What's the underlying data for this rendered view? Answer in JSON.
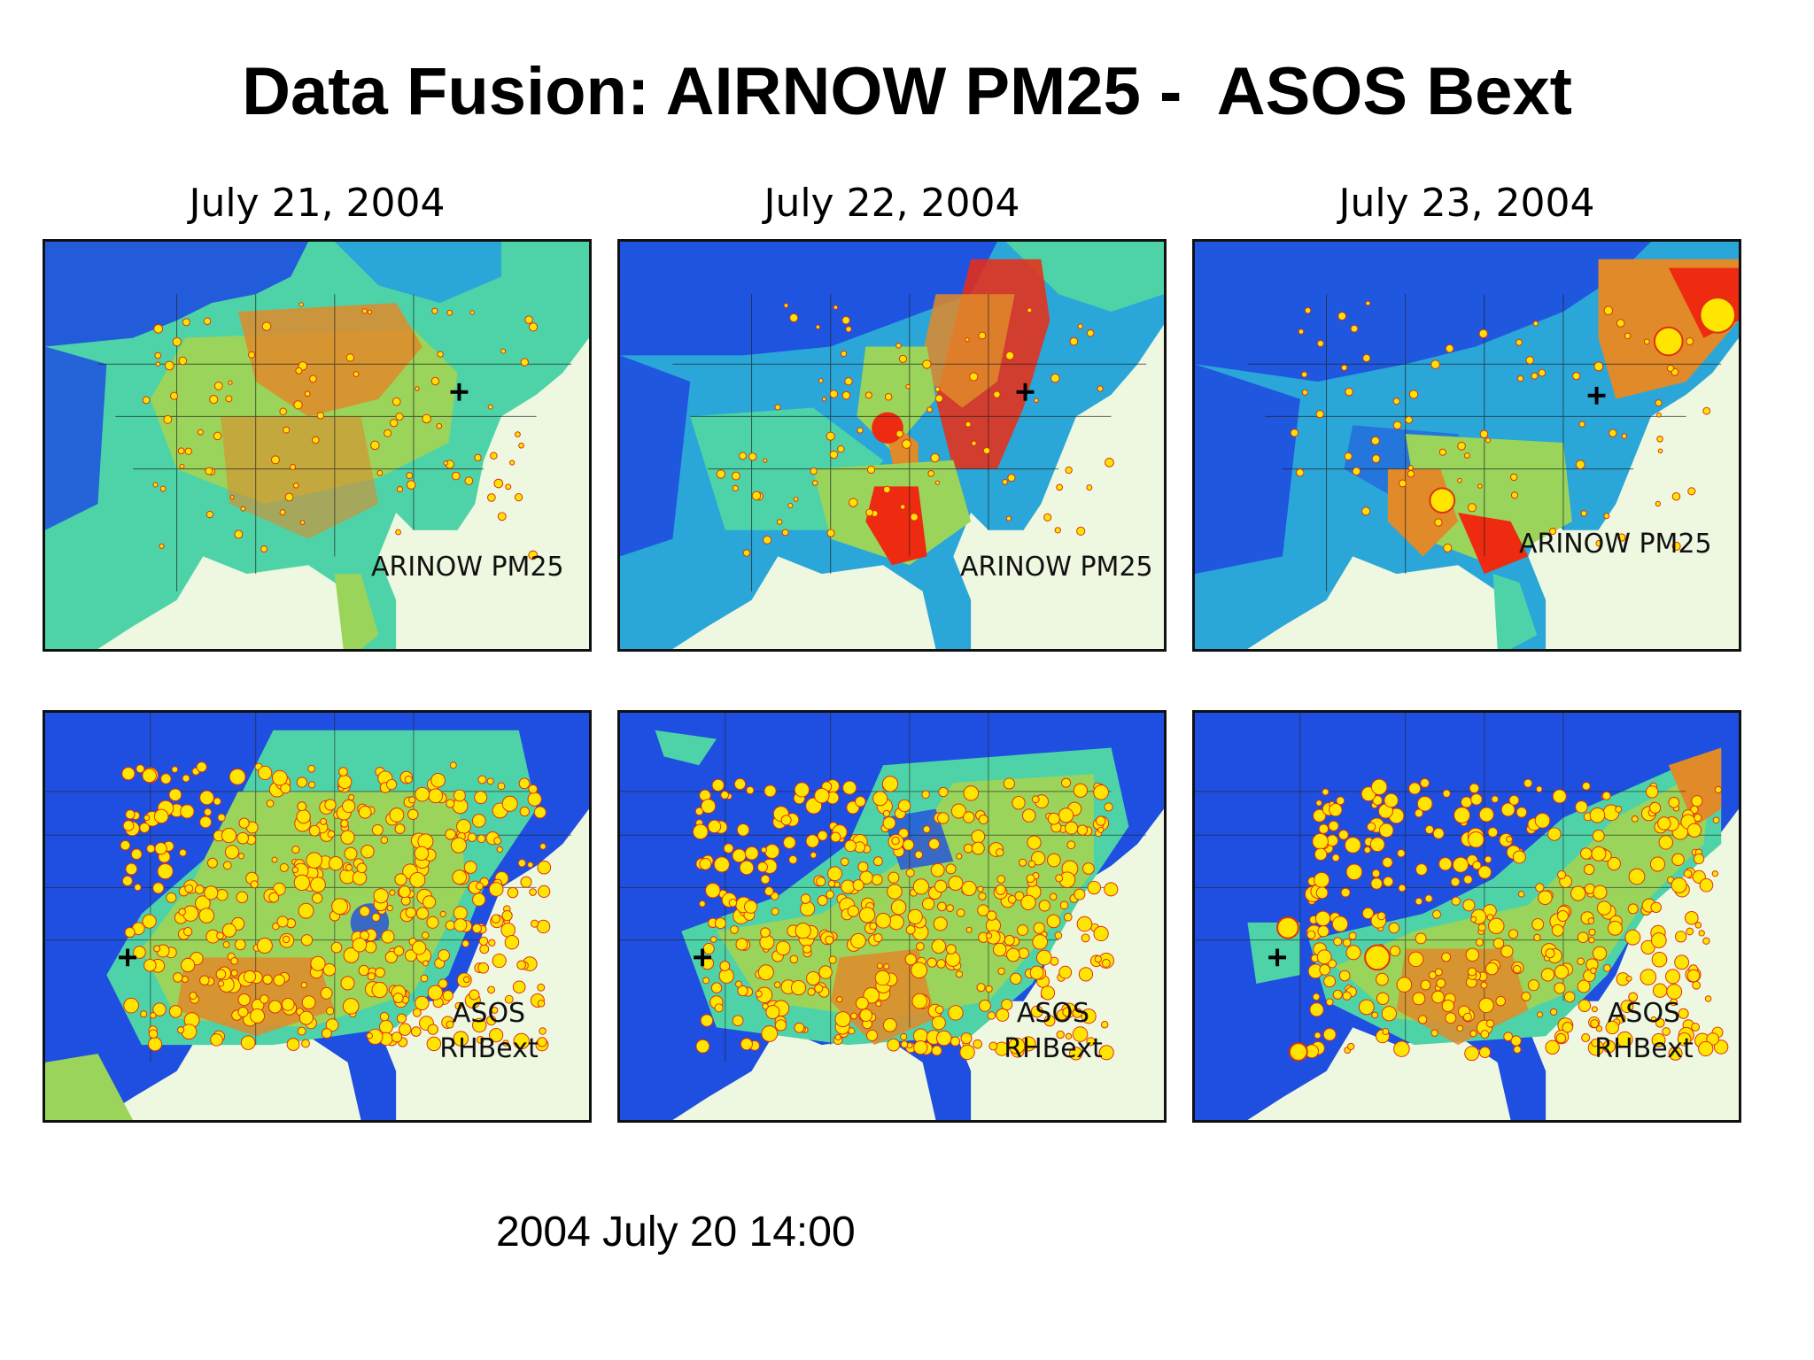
{
  "title": "Data Fusion: AIRNOW PM25 -  ASOS Bext",
  "columns": [
    {
      "date": "July 21, 2004"
    },
    {
      "date": "July 22, 2004"
    },
    {
      "date": "July 23, 2004"
    }
  ],
  "panels": {
    "top": [
      {
        "label": "ARINOW PM25"
      },
      {
        "label": "ARINOW PM25"
      },
      {
        "label": "ARINOW PM25"
      }
    ],
    "bottom": [
      {
        "label_line1": "ASOS",
        "label_line2": "RHBext"
      },
      {
        "label_line1": "ASOS",
        "label_line2": "RHBext"
      },
      {
        "label_line1": "ASOS",
        "label_line2": "RHBext"
      }
    ]
  },
  "footer": {
    "timestamp": "2004 July 20 14:00"
  },
  "colors": {
    "low": "#1f4fe0",
    "low_mid": "#2aa7d8",
    "mid": "#4ed3a8",
    "mid_high": "#9ad45a",
    "high": "#e08a2a",
    "very_high": "#ee2a10",
    "ocean": "#eef7e0",
    "marker_fill": "#ffe600",
    "marker_edge": "#e03010"
  }
}
